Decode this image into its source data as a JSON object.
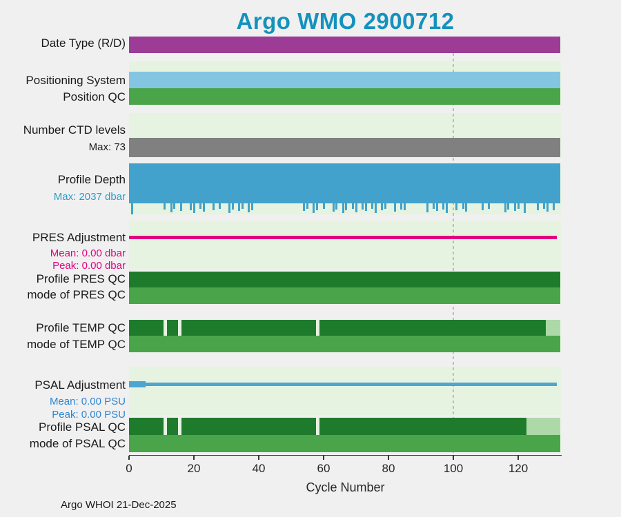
{
  "footer": "Argo WHOI 21-Dec-2025",
  "chart_data": {
    "type": "bar",
    "title": "Argo WMO 2900712",
    "title_color": "#1492bd",
    "xlabel": "Cycle Number",
    "xlim": [
      0,
      133
    ],
    "x_ticks": [
      0,
      20,
      40,
      60,
      80,
      100,
      120
    ],
    "marker_line": {
      "x": 100,
      "color": "#bcbcbc",
      "style": "dotted"
    },
    "colors": {
      "figure_bg": "#f0f0f0",
      "plot_bg": "#e6f3e0",
      "axis": "#333333"
    },
    "rows": [
      {
        "id": "date-type",
        "label": "Date Type (R/D)",
        "color": "#9c3c97",
        "segments": [
          [
            0,
            133
          ]
        ]
      },
      {
        "id": "positioning-system",
        "label": "Positioning System",
        "color": "#84c5e2",
        "segments": [
          [
            0,
            133
          ]
        ]
      },
      {
        "id": "position-qc",
        "label": "Position QC",
        "color": "#4aa54a",
        "segments": [
          [
            0,
            133
          ]
        ]
      },
      {
        "id": "ctd-levels",
        "label": "Number CTD levels",
        "color": "#808080",
        "segments": [
          [
            0,
            133
          ]
        ],
        "sublabels": [
          {
            "text": "Max: 73",
            "color": "#1a1a1a"
          }
        ]
      },
      {
        "id": "profile-depth",
        "label": "Profile Depth",
        "color": "#42a2cb",
        "segments": [
          [
            0,
            133
          ]
        ],
        "sublabels": [
          {
            "text": "Max: 2037 dbar",
            "color": "#2d9bc9"
          }
        ],
        "depth_marks": [
          [
            1,
            1
          ],
          [
            11,
            0.55
          ],
          [
            13,
            0.8
          ],
          [
            14,
            0.5
          ],
          [
            16,
            0.7
          ],
          [
            19,
            0.6
          ],
          [
            20,
            0.9
          ],
          [
            22,
            0.5
          ],
          [
            23,
            0.75
          ],
          [
            26,
            0.6
          ],
          [
            28,
            0.5
          ],
          [
            31,
            0.85
          ],
          [
            32,
            0.55
          ],
          [
            34,
            0.7
          ],
          [
            35,
            0.5
          ],
          [
            37,
            0.8
          ],
          [
            38,
            0.6
          ],
          [
            54,
            0.7
          ],
          [
            55,
            0.5
          ],
          [
            57,
            0.85
          ],
          [
            58,
            0.6
          ],
          [
            60,
            0.5
          ],
          [
            63,
            0.75
          ],
          [
            64,
            0.55
          ],
          [
            66,
            0.9
          ],
          [
            67,
            0.6
          ],
          [
            69,
            0.5
          ],
          [
            70,
            0.8
          ],
          [
            72,
            0.55
          ],
          [
            73,
            0.7
          ],
          [
            75,
            0.5
          ],
          [
            76,
            0.85
          ],
          [
            78,
            0.6
          ],
          [
            79,
            0.5
          ],
          [
            82,
            0.75
          ],
          [
            84,
            0.55
          ],
          [
            85,
            0.65
          ],
          [
            92,
            0.8
          ],
          [
            94,
            0.5
          ],
          [
            95,
            0.7
          ],
          [
            97,
            0.55
          ],
          [
            98,
            0.9
          ],
          [
            101,
            0.6
          ],
          [
            103,
            0.5
          ],
          [
            104,
            0.75
          ],
          [
            109,
            0.6
          ],
          [
            111,
            0.5
          ],
          [
            116,
            0.8
          ],
          [
            117,
            0.55
          ],
          [
            119,
            0.7
          ],
          [
            120,
            0.5
          ],
          [
            122,
            0.85
          ],
          [
            126,
            0.6
          ],
          [
            128,
            0.5
          ],
          [
            129,
            0.75
          ],
          [
            131,
            0.6
          ]
        ]
      },
      {
        "id": "pres-adjustment",
        "label": "PRES Adjustment",
        "color": "#e20082",
        "segments": [
          [
            0,
            132
          ]
        ],
        "sublabels": [
          {
            "text": "Mean: 0.00 dbar",
            "color": "#e2007f"
          },
          {
            "text": "Peak: 0.00 dbar",
            "color": "#e2007f"
          }
        ]
      },
      {
        "id": "profile-pres-qc",
        "label": "Profile PRES QC",
        "color": "#1e7b2c",
        "segments": [
          [
            0,
            133
          ]
        ]
      },
      {
        "id": "mode-pres-qc",
        "label": "mode of PRES QC",
        "color": "#4aa54a",
        "segments": [
          [
            0,
            133
          ]
        ]
      },
      {
        "id": "profile-temp-qc",
        "label": "Profile TEMP QC",
        "color": "#1e7b2c",
        "segments": [
          [
            0,
            10.6
          ],
          [
            11.7,
            15.1
          ],
          [
            16.2,
            57.7
          ],
          [
            58.7,
            128.5
          ]
        ],
        "light_color": "#add9a8",
        "light_segments": [
          [
            128.5,
            133
          ]
        ]
      },
      {
        "id": "mode-temp-qc",
        "label": "mode of TEMP QC",
        "color": "#4aa54a",
        "segments": [
          [
            0,
            133
          ]
        ]
      },
      {
        "id": "psal-adjustment",
        "label": "PSAL Adjustment",
        "color": "#4da5d2",
        "segments": [
          [
            0,
            132
          ]
        ],
        "thick_segment": [
          0,
          5
        ],
        "sublabels": [
          {
            "text": "Mean: 0.00 PSU",
            "color": "#2e86d1"
          },
          {
            "text": "Peak: 0.00 PSU",
            "color": "#2e86d1"
          }
        ]
      },
      {
        "id": "profile-psal-qc",
        "label": "Profile PSAL QC",
        "color": "#1e7b2c",
        "segments": [
          [
            0,
            10.6
          ],
          [
            11.7,
            15.1
          ],
          [
            16.2,
            57.7
          ],
          [
            58.7,
            122.5
          ]
        ],
        "light_color": "#add9a8",
        "light_segments": [
          [
            122.5,
            133
          ]
        ]
      },
      {
        "id": "mode-psal-qc",
        "label": "mode of PSAL QC",
        "color": "#4aa54a",
        "segments": [
          [
            0,
            133
          ]
        ]
      }
    ]
  }
}
